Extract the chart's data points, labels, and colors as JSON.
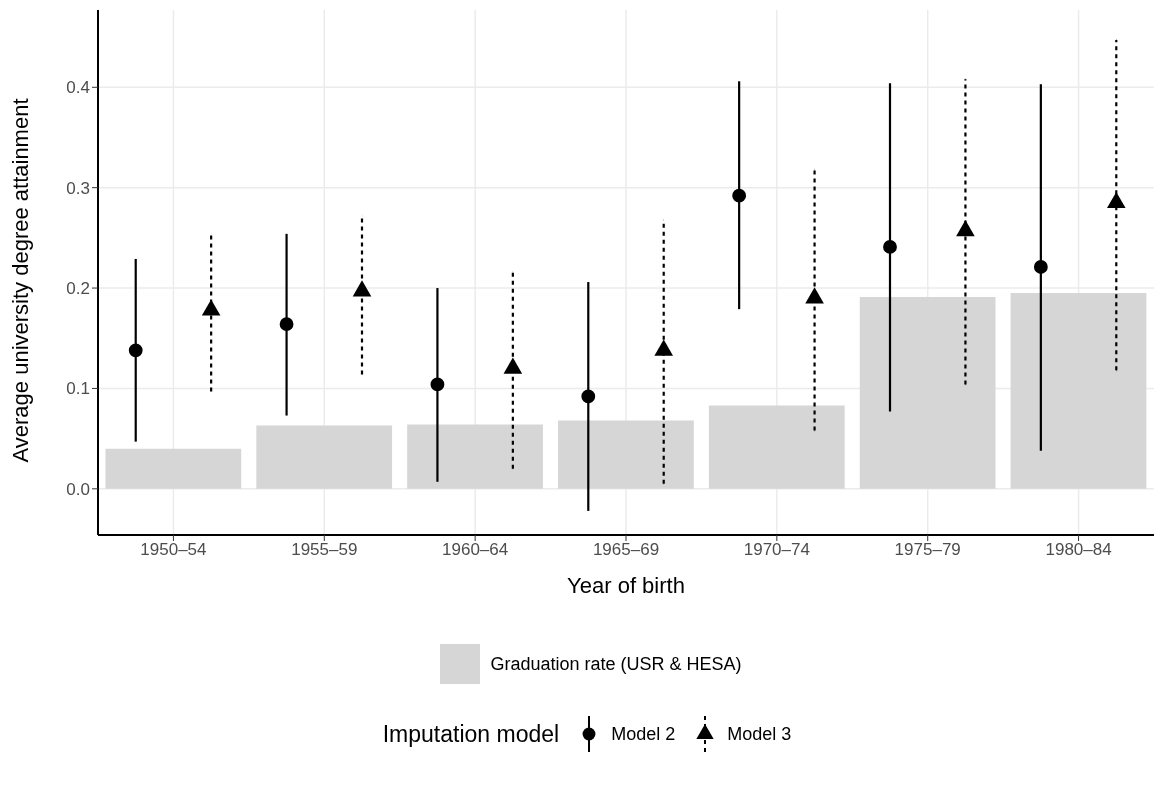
{
  "chart_data": {
    "type": "bar",
    "xlabel": "Year of birth",
    "ylabel": "Average university degree attainment",
    "legend_title": "Imputation model",
    "categories": [
      "1950–54",
      "1955–59",
      "1960–64",
      "1965–69",
      "1970–74",
      "1975–79",
      "1980–84"
    ],
    "series": [
      {
        "name": "Graduation rate (USR & HESA)",
        "color": "#d6d6d6",
        "values": [
          0.04,
          0.063,
          0.064,
          0.068,
          0.083,
          0.191,
          0.195
        ]
      },
      {
        "name": "Model 2",
        "type": "scatter",
        "color": "#000000",
        "marker": "circle",
        "line_style": "solid",
        "x": [
          "1950–54",
          "1955–59",
          "1960–64",
          "1965–69",
          "1970–74",
          "1975–79",
          "1980–84"
        ],
        "values": [
          0.138,
          0.164,
          0.104,
          0.092,
          0.292,
          0.241,
          0.221
        ],
        "errors": [
          [
            0.047,
            0.229
          ],
          [
            0.073,
            0.254
          ],
          [
            0.007,
            0.2
          ],
          [
            -0.022,
            0.206
          ],
          [
            0.179,
            0.406
          ],
          [
            0.077,
            0.404
          ],
          [
            0.038,
            0.403
          ]
        ]
      },
      {
        "name": "Model 3",
        "type": "scatter",
        "color": "#000000",
        "marker": "triangle",
        "line_style": "dashed",
        "x": [
          "1950–54",
          "1955–59",
          "1960–64",
          "1965–69",
          "1970–74",
          "1975–79",
          "1980–84"
        ],
        "values": [
          0.178,
          0.197,
          0.12,
          0.138,
          0.19,
          0.257,
          0.285
        ],
        "errors": [
          [
            0.097,
            0.254
          ],
          [
            0.114,
            0.272
          ],
          [
            0.02,
            0.216
          ],
          [
            0.005,
            0.268
          ],
          [
            0.058,
            0.318
          ],
          [
            0.104,
            0.408
          ],
          [
            0.118,
            0.447
          ]
        ]
      }
    ],
    "ylim": [
      -0.046,
      0.477
    ],
    "yticks": [
      {
        "value": 0,
        "label": "0.0"
      },
      0.1,
      0.2,
      0.3,
      0.4
    ],
    "grid": true,
    "legend": "bottom"
  }
}
